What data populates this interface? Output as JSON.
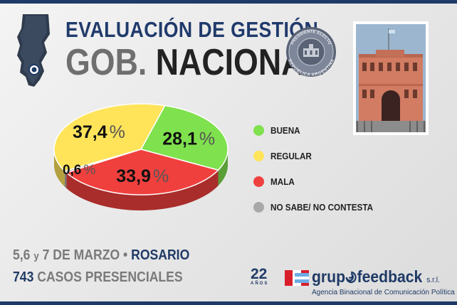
{
  "header": {
    "title_line1": "EVALUACIÓN DE GESTIÓN",
    "title_gob": "GOB.",
    "title_nacional": "NACIONAL"
  },
  "seal": {
    "text_top": "PRESIDENTE ELECTO",
    "text_bottom": "REPÚBLICA ARGENTINA"
  },
  "icons": {
    "map": "santa-fe-map-icon",
    "seal": "presidential-seal-icon",
    "photo": "casa-rosada-photo"
  },
  "colors": {
    "buena": "#7fe14d",
    "regular": "#ffe45a",
    "mala": "#f0403e",
    "ns_nc": "#a8a8a8",
    "brand_blue": "#1f3a66"
  },
  "chart_data": {
    "type": "pie",
    "style": "3d",
    "slices": [
      {
        "label": "BUENA",
        "value": 28.1,
        "display": "28,1",
        "color": "#7fe14d"
      },
      {
        "label": "REGULAR",
        "value": 37.4,
        "display": "37,4",
        "color": "#ffe45a"
      },
      {
        "label": "MALA",
        "value": 33.9,
        "display": "33,9",
        "color": "#f0403e"
      },
      {
        "label": "NO SABE/ NO CONTESTA",
        "value": 0.6,
        "display": "0,6",
        "color": "#a8a8a8"
      }
    ],
    "percent_sign": "%",
    "legend_position": "right"
  },
  "legend": [
    {
      "label": "BUENA",
      "color": "#7fe14d"
    },
    {
      "label": "REGULAR",
      "color": "#ffe45a"
    },
    {
      "label": "MALA",
      "color": "#f0403e"
    },
    {
      "label": "NO SABE/ NO CONTESTA",
      "color": "#a8a8a8"
    }
  ],
  "footer": {
    "dates": "5,6",
    "y": "y",
    "day": "7",
    "month": "DE MARZO",
    "bullet": "•",
    "city": "ROSARIO",
    "cases_num": "743",
    "cases_text": "CASOS PRESENCIALES"
  },
  "logo22": {
    "number": "22",
    "sub": "AÑOS"
  },
  "brand": {
    "name_left": "grup",
    "name_right": "feedback",
    "suffix": "s.r.l.",
    "tagline": "Agencia Binacional de Comunicación Política"
  }
}
